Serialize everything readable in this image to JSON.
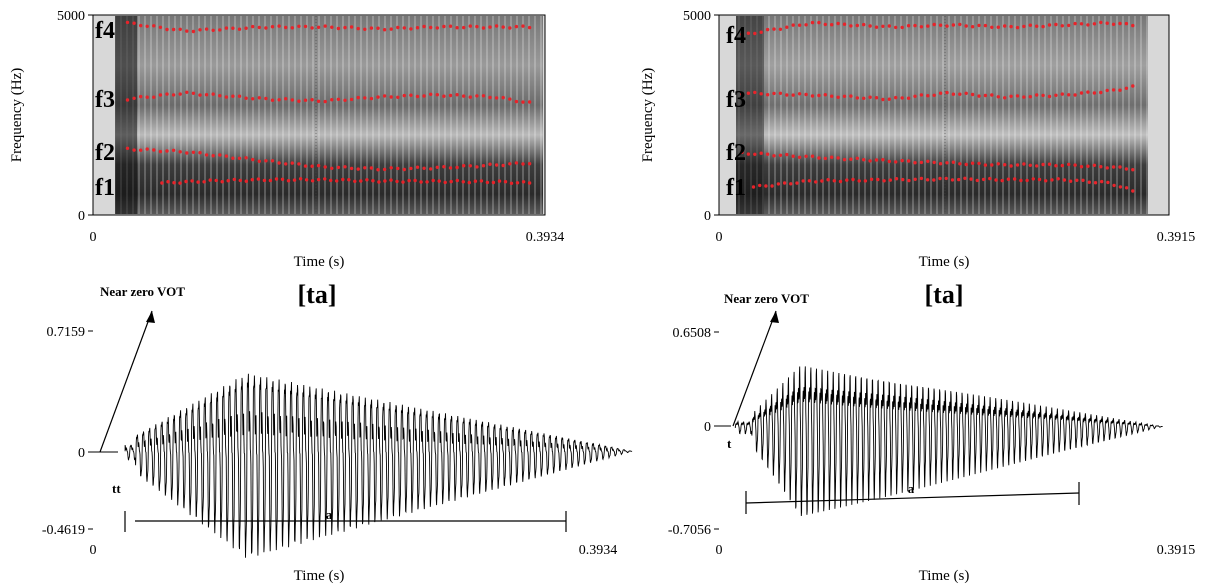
{
  "panels": [
    {
      "id": "left",
      "transcription": "[ta]",
      "vot_note": "Near zero VOT",
      "segment_labels": [
        "tt",
        "a"
      ],
      "spectrogram": {
        "ylabel": "Frequency (Hz)",
        "xlabel": "Time (s)",
        "y_top_label": "5000",
        "y_bottom_label": "0",
        "x_start_label": "0",
        "x_end_label": "0.3934",
        "formant_labels": [
          "f4",
          "f3",
          "f2",
          "f1"
        ]
      },
      "waveform": {
        "xlabel": "Time (s)",
        "y_max_label": "0.7159",
        "y_zero_label": "0",
        "y_min_label": "-0.4619",
        "x_start_label": "0",
        "x_end_label": "0.3934"
      }
    },
    {
      "id": "right",
      "transcription": "[ta]",
      "vot_note": "Near zero VOT",
      "segment_labels": [
        "t",
        "a"
      ],
      "spectrogram": {
        "ylabel": "Frequency (Hz)",
        "xlabel": "Time (s)",
        "y_top_label": "5000",
        "y_bottom_label": "0",
        "x_start_label": "0",
        "x_end_label": "0.3915",
        "formant_labels": [
          "f4",
          "f3",
          "f2",
          "f1"
        ]
      },
      "waveform": {
        "xlabel": "Time (s)",
        "y_max_label": "0.6508",
        "y_zero_label": "0",
        "y_min_label": "-0.7056",
        "x_start_label": "0",
        "x_end_label": "0.3915"
      }
    }
  ],
  "chart_data": [
    {
      "type": "scatter",
      "xlabel": "Time (s)",
      "ylabel": "Frequency (Hz)",
      "xlim": [
        0,
        0.3934
      ],
      "ylim": [
        0,
        5000
      ],
      "voicing_range": [
        0.025,
        0.4
      ],
      "series": [
        {
          "name": "f1",
          "values": [
            [
              0.06,
              800
            ],
            [
              0.1,
              850
            ],
            [
              0.15,
              880
            ],
            [
              0.2,
              880
            ],
            [
              0.25,
              850
            ],
            [
              0.3,
              840
            ],
            [
              0.35,
              830
            ],
            [
              0.38,
              800
            ]
          ]
        },
        {
          "name": "f2",
          "values": [
            [
              0.03,
              1650
            ],
            [
              0.08,
              1580
            ],
            [
              0.15,
              1350
            ],
            [
              0.2,
              1200
            ],
            [
              0.25,
              1150
            ],
            [
              0.3,
              1180
            ],
            [
              0.35,
              1250
            ],
            [
              0.38,
              1300
            ]
          ]
        },
        {
          "name": "f3",
          "values": [
            [
              0.03,
              2900
            ],
            [
              0.08,
              3050
            ],
            [
              0.15,
              2900
            ],
            [
              0.2,
              2850
            ],
            [
              0.25,
              2950
            ],
            [
              0.3,
              3000
            ],
            [
              0.35,
              2950
            ],
            [
              0.38,
              2800
            ]
          ]
        },
        {
          "name": "f4",
          "values": [
            [
              0.03,
              4800
            ],
            [
              0.08,
              4600
            ],
            [
              0.15,
              4700
            ],
            [
              0.2,
              4700
            ],
            [
              0.25,
              4650
            ],
            [
              0.3,
              4700
            ],
            [
              0.35,
              4700
            ],
            [
              0.38,
              4700
            ]
          ]
        }
      ]
    },
    {
      "type": "scatter",
      "xlabel": "Time (s)",
      "ylabel": "Frequency (Hz)",
      "xlim": [
        0,
        0.3915
      ],
      "ylim": [
        0,
        5000
      ],
      "voicing_range": [
        0.02,
        0.37
      ],
      "series": [
        {
          "name": "f1",
          "values": [
            [
              0.03,
              700
            ],
            [
              0.08,
              850
            ],
            [
              0.15,
              880
            ],
            [
              0.2,
              900
            ],
            [
              0.25,
              880
            ],
            [
              0.3,
              880
            ],
            [
              0.34,
              800
            ],
            [
              0.36,
              600
            ]
          ]
        },
        {
          "name": "f2",
          "values": [
            [
              0.02,
              1550
            ],
            [
              0.08,
              1450
            ],
            [
              0.15,
              1350
            ],
            [
              0.2,
              1300
            ],
            [
              0.25,
              1250
            ],
            [
              0.3,
              1250
            ],
            [
              0.34,
              1200
            ],
            [
              0.36,
              1150
            ]
          ]
        },
        {
          "name": "f3",
          "values": [
            [
              0.02,
              3050
            ],
            [
              0.08,
              3000
            ],
            [
              0.15,
              2900
            ],
            [
              0.2,
              3050
            ],
            [
              0.25,
              2950
            ],
            [
              0.3,
              3000
            ],
            [
              0.34,
              3100
            ],
            [
              0.36,
              3200
            ]
          ]
        },
        {
          "name": "f4",
          "values": [
            [
              0.02,
              4500
            ],
            [
              0.08,
              4800
            ],
            [
              0.15,
              4700
            ],
            [
              0.2,
              4750
            ],
            [
              0.25,
              4700
            ],
            [
              0.3,
              4750
            ],
            [
              0.34,
              4800
            ],
            [
              0.36,
              4750
            ]
          ]
        }
      ]
    },
    {
      "type": "line",
      "xlabel": "Time (s)",
      "xlim": [
        0,
        0.3934
      ],
      "ylim": [
        -0.4619,
        0.7159
      ],
      "closure_time": 0.025,
      "onset_time": 0.033,
      "peak_time": 0.12,
      "end_time": 0.42,
      "peak_amplitude": 0.7159,
      "segments": [
        {
          "label": "tt",
          "start": 0.025,
          "end": 0.035
        },
        {
          "label": "a",
          "start": 0.035,
          "end": 0.4
        }
      ]
    },
    {
      "type": "line",
      "xlabel": "Time (s)",
      "xlim": [
        0,
        0.3915
      ],
      "ylim": [
        -0.7056,
        0.6508
      ],
      "closure_time": 0.014,
      "onset_time": 0.028,
      "peak_time": 0.07,
      "end_time": 0.38,
      "peak_amplitude": 0.6508,
      "segments": [
        {
          "label": "t",
          "start": 0.012,
          "end": 0.02
        },
        {
          "label": "a",
          "start": 0.02,
          "end": 0.3
        }
      ]
    }
  ]
}
